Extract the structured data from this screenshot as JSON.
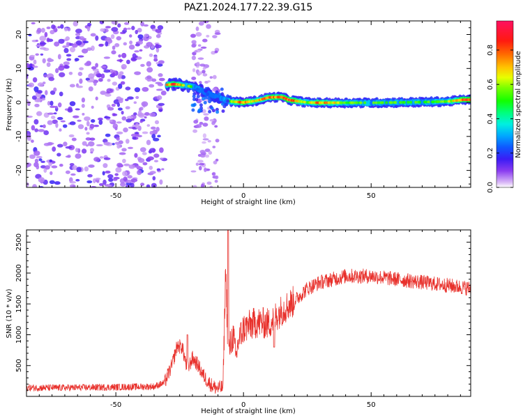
{
  "figure_title": "PAZ1.2024.177.22.39.G15",
  "chart_data": [
    {
      "type": "heatmap",
      "xlabel": "Height of straight line (km)",
      "ylabel": "Frequency (Hz)",
      "xlim": [
        -85,
        89
      ],
      "ylim": [
        -25,
        24
      ],
      "xticks": [
        -50,
        0,
        50
      ],
      "yticks": [
        -20,
        -10,
        0,
        10,
        20
      ],
      "colorbar": {
        "label": "Normalized spectral amplitude",
        "range": [
          0,
          0.97
        ],
        "ticks": [
          0.0,
          0.2,
          0.4,
          0.6,
          0.8
        ],
        "colormap": "gist_rainbow_r"
      },
      "ridge": [
        {
          "x": -30,
          "f": 5.2,
          "amp": 0.75
        },
        {
          "x": -27,
          "f": 5.4,
          "amp": 0.9
        },
        {
          "x": -23,
          "f": 5.0,
          "amp": 0.65
        },
        {
          "x": -19,
          "f": 4.5,
          "amp": 0.55
        },
        {
          "x": -15,
          "f": 3.0,
          "amp": 0.3
        },
        {
          "x": -10,
          "f": 1.5,
          "amp": 0.4
        },
        {
          "x": -5,
          "f": 0.3,
          "amp": 0.6
        },
        {
          "x": 0,
          "f": 0.0,
          "amp": 0.9
        },
        {
          "x": 5,
          "f": 0.5,
          "amp": 0.7
        },
        {
          "x": 10,
          "f": 1.5,
          "amp": 0.85
        },
        {
          "x": 15,
          "f": 1.6,
          "amp": 0.85
        },
        {
          "x": 18,
          "f": 0.7,
          "amp": 0.9
        },
        {
          "x": 25,
          "f": 0.0,
          "amp": 0.6
        },
        {
          "x": 30,
          "f": -0.1,
          "amp": 0.85
        },
        {
          "x": 40,
          "f": -0.1,
          "amp": 0.6
        },
        {
          "x": 50,
          "f": -0.1,
          "amp": 0.55
        },
        {
          "x": 60,
          "f": 0.0,
          "amp": 0.55
        },
        {
          "x": 70,
          "f": 0.1,
          "amp": 0.55
        },
        {
          "x": 80,
          "f": 0.3,
          "amp": 0.6
        },
        {
          "x": 86,
          "f": 0.8,
          "amp": 0.9
        }
      ],
      "noise_region_x": [
        -85,
        -31
      ],
      "secondary_noise_x": [
        -20,
        -10
      ]
    },
    {
      "type": "line",
      "xlabel": "Height of straight line (km)",
      "ylabel": "SNR (10 * v/v)",
      "xlim": [
        -85,
        89
      ],
      "ylim": [
        0,
        2700
      ],
      "xticks": [
        -50,
        0,
        50
      ],
      "yticks": [
        500,
        1000,
        1500,
        2000,
        2500
      ],
      "color": "#e8302b",
      "envelope": {
        "x": [
          -85,
          -70,
          -50,
          -35,
          -31,
          -28,
          -26,
          -24,
          -22,
          -20,
          -18,
          -16,
          -14,
          -12,
          -10,
          -8,
          -7,
          -6,
          -5,
          -4,
          -3,
          -2,
          0,
          5,
          10,
          15,
          20,
          25,
          30,
          35,
          40,
          50,
          60,
          70,
          80,
          89
        ],
        "y": [
          140,
          140,
          150,
          160,
          220,
          500,
          820,
          800,
          430,
          620,
          520,
          360,
          240,
          160,
          130,
          150,
          2100,
          700,
          850,
          1000,
          600,
          900,
          1100,
          1200,
          1180,
          1400,
          1550,
          1750,
          1850,
          1900,
          1950,
          1950,
          1900,
          1850,
          1800,
          1750
        ]
      },
      "peaks": [
        {
          "x": -6,
          "y": 2700
        },
        {
          "x": -22,
          "y": 1000
        },
        {
          "x": 12,
          "y": 800
        }
      ]
    }
  ]
}
